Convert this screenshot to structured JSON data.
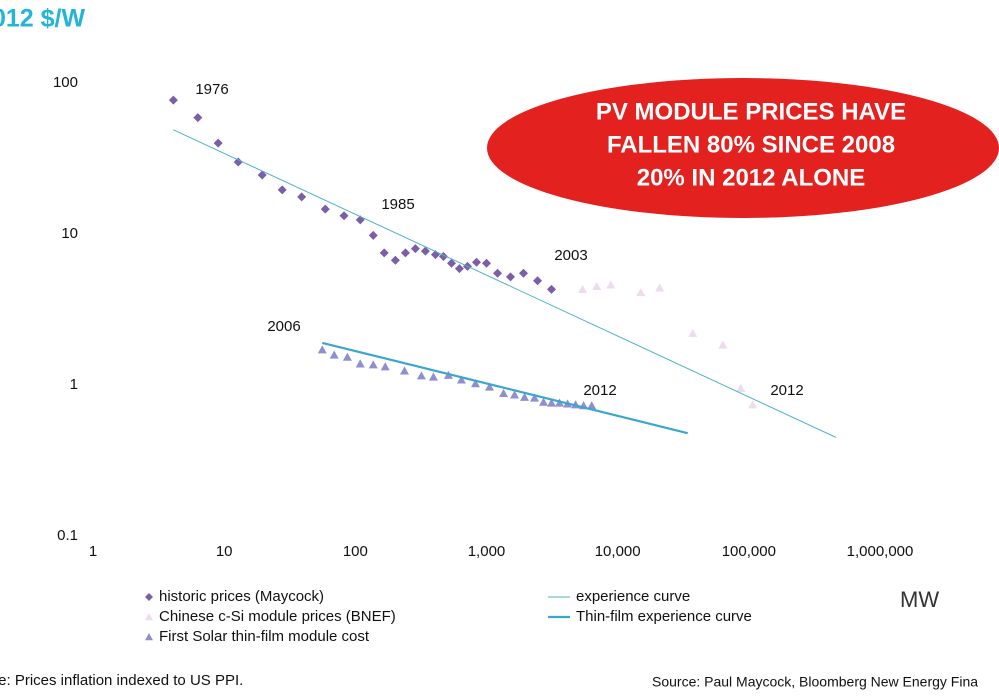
{
  "chart_data": {
    "type": "scatter",
    "title": "012 $/W",
    "log_x": true,
    "log_y": true,
    "grid": false,
    "x_unit_label": "MW",
    "xlim": [
      1,
      1000000
    ],
    "ylim": [
      0.1,
      100
    ],
    "xticks": [
      1,
      10,
      100,
      {
        "value": 1000,
        "label": "1,000"
      },
      {
        "value": 10000,
        "label": "10,000"
      },
      {
        "value": 100000,
        "label": "100,000"
      },
      {
        "value": 1000000,
        "label": "1,000,000"
      }
    ],
    "yticks": [
      0.1,
      1,
      10,
      100
    ],
    "annotations": [
      "1976",
      "1985",
      "2003",
      "2006",
      "2012",
      "2012"
    ],
    "callout": [
      "PV MODULE PRICES HAVE",
      "FALLEN 80%  SINCE 2008",
      "20%  IN 2012 ALONE"
    ],
    "footnote": "te: Prices inflation indexed to US PPI.",
    "source": "Source: Paul Maycock, Bloomberg New Energy Fina",
    "series": [
      {
        "name": "historic prices (Maycock)",
        "marker": "diamond",
        "color": "#7b5ea7",
        "x": [
          4.1,
          6.3,
          9.0,
          12.8,
          19.5,
          27.7,
          39,
          59,
          82,
          109,
          137,
          166,
          202,
          241,
          287,
          342,
          408,
          470,
          541,
          622,
          716,
          839,
          1000,
          1214,
          1524,
          1915,
          2450,
          3130
        ],
        "values": [
          77,
          59,
          40,
          30,
          24.6,
          19.6,
          17.6,
          14.6,
          13.2,
          12.4,
          9.8,
          7.5,
          6.7,
          7.5,
          8.0,
          7.7,
          7.3,
          7.1,
          6.4,
          5.9,
          6.1,
          6.5,
          6.4,
          5.5,
          5.2,
          5.5,
          4.9,
          4.3
        ]
      },
      {
        "name": "Chinese c-Si module prices (BNEF)",
        "marker": "triangle",
        "color": "#eddcee",
        "x": [
          5400,
          6920,
          8850,
          15000,
          20900,
          37400,
          63400,
          86900,
          107000
        ],
        "values": [
          4.3,
          4.5,
          4.6,
          4.1,
          4.4,
          2.2,
          1.84,
          0.95,
          0.74
        ]
      },
      {
        "name": "First Solar thin-film module cost",
        "marker": "triangle",
        "color": "#8f8fd0",
        "x": [
          56,
          69,
          87,
          109,
          137,
          169,
          237,
          319,
          394,
          513,
          644,
          824,
          1054,
          1349,
          1636,
          1950,
          2323,
          2720,
          3130,
          3600,
          4150,
          4780,
          5500,
          6340
        ],
        "values": [
          1.71,
          1.58,
          1.53,
          1.38,
          1.36,
          1.32,
          1.24,
          1.15,
          1.13,
          1.16,
          1.08,
          1.02,
          0.97,
          0.88,
          0.86,
          0.83,
          0.82,
          0.77,
          0.76,
          0.76,
          0.75,
          0.74,
          0.73,
          0.73
        ]
      },
      {
        "name": "experience curve",
        "marker": "line",
        "line_width": 1,
        "color": "#4fb3c8",
        "x": [
          4.1,
          461000
        ],
        "values": [
          49,
          0.45
        ]
      },
      {
        "name": "Thin-film experience curve",
        "marker": "line",
        "line_width": 2.2,
        "color": "#3aa6d0",
        "x": [
          56,
          34200
        ],
        "values": [
          1.9,
          0.48
        ]
      }
    ]
  }
}
